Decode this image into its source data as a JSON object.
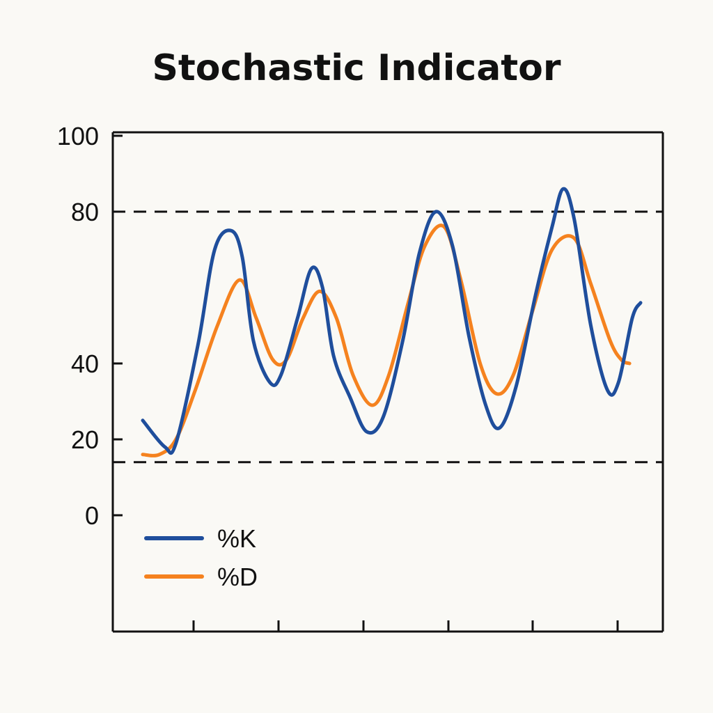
{
  "chart_data": {
    "type": "line",
    "title": "Stochastic Indicator",
    "xlabel": "",
    "ylabel": "",
    "y_ticks": [
      0,
      20,
      40,
      80,
      100
    ],
    "x_tick_count": 6,
    "reference_lines": [
      {
        "y": 80,
        "style": "dashed"
      },
      {
        "y": 14,
        "style": "dashed"
      }
    ],
    "grid": false,
    "legend_position": "bottom-left",
    "series": [
      {
        "name": "%K",
        "color": "#1f4e9c",
        "points": [
          [
            0.0,
            25
          ],
          [
            0.8,
            18
          ],
          [
            1.2,
            19
          ],
          [
            2.0,
            45
          ],
          [
            2.6,
            70
          ],
          [
            3.2,
            75
          ],
          [
            3.6,
            68
          ],
          [
            4.0,
            46
          ],
          [
            4.6,
            35
          ],
          [
            5.0,
            37
          ],
          [
            5.6,
            52
          ],
          [
            6.1,
            65
          ],
          [
            6.5,
            60
          ],
          [
            6.9,
            42
          ],
          [
            7.5,
            31
          ],
          [
            8.1,
            22
          ],
          [
            8.7,
            26
          ],
          [
            9.4,
            46
          ],
          [
            10.0,
            69
          ],
          [
            10.6,
            80
          ],
          [
            11.2,
            71
          ],
          [
            11.8,
            47
          ],
          [
            12.4,
            29
          ],
          [
            12.9,
            23
          ],
          [
            13.5,
            34
          ],
          [
            14.2,
            58
          ],
          [
            14.8,
            76
          ],
          [
            15.2,
            86
          ],
          [
            15.6,
            78
          ],
          [
            16.2,
            50
          ],
          [
            16.8,
            33
          ],
          [
            17.2,
            35
          ],
          [
            17.7,
            52
          ],
          [
            18.0,
            56
          ]
        ]
      },
      {
        "name": "%D",
        "color": "#f5821f",
        "points": [
          [
            0.0,
            16
          ],
          [
            0.6,
            16
          ],
          [
            1.2,
            20
          ],
          [
            1.9,
            33
          ],
          [
            2.7,
            50
          ],
          [
            3.5,
            62
          ],
          [
            4.1,
            52
          ],
          [
            4.7,
            41
          ],
          [
            5.2,
            41
          ],
          [
            5.8,
            52
          ],
          [
            6.4,
            59
          ],
          [
            7.0,
            52
          ],
          [
            7.6,
            37
          ],
          [
            8.3,
            29
          ],
          [
            8.9,
            37
          ],
          [
            9.6,
            56
          ],
          [
            10.2,
            71
          ],
          [
            10.9,
            76
          ],
          [
            11.5,
            62
          ],
          [
            12.2,
            40
          ],
          [
            12.8,
            32
          ],
          [
            13.4,
            37
          ],
          [
            14.1,
            54
          ],
          [
            14.8,
            70
          ],
          [
            15.6,
            73
          ],
          [
            16.2,
            61
          ],
          [
            16.9,
            46
          ],
          [
            17.3,
            41
          ],
          [
            17.6,
            40
          ]
        ]
      }
    ]
  }
}
